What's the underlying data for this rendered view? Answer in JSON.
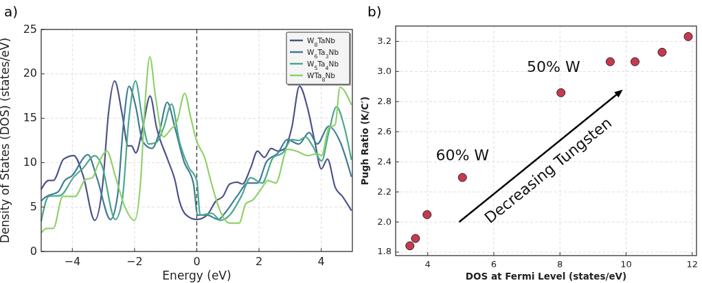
{
  "chart_data": [
    {
      "type": "line",
      "title": "a)",
      "xlabel": "Energy (eV)",
      "ylabel": "Density of States (DOS) (states/eV)",
      "xlim": [
        -5,
        5
      ],
      "ylim": [
        0,
        25
      ],
      "xticks": [
        {
          "value": -4,
          "label": "−4"
        },
        {
          "value": -2,
          "label": "−2"
        },
        0,
        2,
        4
      ],
      "yticks": [
        0,
        5,
        10,
        15,
        20,
        25
      ],
      "grid": true,
      "legend": "top right",
      "line_style": "solid",
      "marker": "none",
      "ref_lines": [
        {
          "axis": "x",
          "value": 0,
          "line_style": "dashed",
          "color": "#333333"
        }
      ],
      "series": [
        {
          "name": "W$_{8}$TaNb",
          "color": "#4e5288",
          "x": [
            -5,
            -4.76,
            -4.61,
            -4.28,
            -3.95,
            -3.65,
            -3.28,
            -3.02,
            -2.84,
            -2.64,
            -2.4,
            -2.21,
            -2.1,
            -1.96,
            -1.74,
            -1.5,
            -1.29,
            -0.93,
            -0.7,
            -0.56,
            -0.34,
            0,
            0.33,
            0.62,
            0.84,
            1.06,
            1.29,
            1.47,
            1.73,
            1.95,
            2.17,
            2.39,
            2.61,
            2.83,
            3.05,
            3.3,
            3.57,
            3.79,
            4,
            4.2,
            4.45,
            4.68,
            4.97
          ],
          "values": [
            7,
            8,
            8,
            10.4,
            10.8,
            8.5,
            3.5,
            7.7,
            15.5,
            19.2,
            15.5,
            11.9,
            11.9,
            11.1,
            13.9,
            17.5,
            13.9,
            10.3,
            8,
            5.7,
            4.1,
            3.6,
            4.1,
            5.7,
            6.2,
            7.6,
            7.8,
            7.6,
            9.4,
            11.3,
            10.6,
            11.6,
            11.3,
            11.6,
            13.9,
            18.6,
            16,
            12.4,
            9.3,
            10.4,
            7.2,
            6.2,
            4.6
          ]
        },
        {
          "name": "W$_{6}$Ta$_{3}$Nb",
          "color": "#3f7b96",
          "x": [
            -5,
            -4.83,
            -4.46,
            -4.24,
            -4.02,
            -3.5,
            -3.21,
            -2.77,
            -2.55,
            -2.36,
            -2.18,
            -1.96,
            -1.74,
            -1.44,
            -1.22,
            -0.95,
            -0.7,
            -0.41,
            -0.11,
            0.03,
            0.33,
            0.7,
            0.92,
            1.29,
            1.65,
            1.95,
            2.24,
            2.61,
            2.91,
            3.28,
            3.61,
            3.87,
            4.24,
            4.6,
            4.97
          ],
          "values": [
            5.7,
            6.2,
            6.7,
            8,
            8.5,
            10.9,
            8.3,
            3.6,
            6.2,
            14.2,
            18.6,
            16.3,
            12.4,
            11.6,
            13.2,
            16.8,
            13.9,
            10.1,
            7.7,
            4.1,
            4.1,
            3.6,
            4.4,
            6.2,
            7.7,
            7.7,
            10.1,
            11.1,
            12.6,
            12.1,
            13.4,
            12.1,
            14.1,
            12.4,
            8.4
          ]
        },
        {
          "name": "W$_{5}$Ta$_{4}$Nb",
          "color": "#4aa88c",
          "x": [
            -5,
            -4.76,
            -4.39,
            -3.95,
            -3.65,
            -3.28,
            -3.06,
            -2.62,
            -2.4,
            -2.18,
            -1.97,
            -1.74,
            -1.55,
            -1.29,
            -1.07,
            -0.81,
            -0.56,
            -0.26,
            0,
            0.11,
            0.48,
            0.77,
            1.06,
            1.43,
            1.73,
            2.1,
            2.46,
            2.76,
            3.05,
            3.28,
            3.5,
            3.72,
            4.01,
            4.24,
            4.49,
            4.75,
            4.97
          ],
          "values": [
            3.4,
            6.2,
            6.3,
            8.4,
            9.4,
            10.8,
            9.8,
            3.6,
            5.7,
            15,
            19.2,
            14.7,
            12.1,
            12.3,
            13.9,
            16.6,
            12.4,
            9.5,
            8,
            4.1,
            4.3,
            3.5,
            4.1,
            6.2,
            8.3,
            7.7,
            10.6,
            11.1,
            12.6,
            12.5,
            12.9,
            11.9,
            10.2,
            13.4,
            16.3,
            13.9,
            10.3
          ]
        },
        {
          "name": "WTa$_{8}$Nb",
          "color": "#8fd16a",
          "x": [
            -5,
            -4.83,
            -4.61,
            -4.31,
            -3.91,
            -3.58,
            -3.36,
            -3.14,
            -2.89,
            -2.62,
            -2.33,
            -2,
            -1.81,
            -1.66,
            -1.51,
            -1.33,
            -1.07,
            -0.85,
            -0.63,
            -0.39,
            -0.19,
            0,
            0.25,
            0.47,
            0.77,
            1.06,
            1.36,
            1.58,
            1.8,
            2.1,
            2.28,
            2.54,
            2.91,
            3.2,
            3.57,
            3.87,
            4.01,
            4.24,
            4.45,
            4.6,
            4.97
          ],
          "values": [
            2.1,
            2.6,
            2.6,
            6.2,
            6.2,
            8.1,
            8.3,
            10.1,
            11.3,
            8.5,
            5.2,
            3.5,
            7.7,
            16.8,
            21.9,
            17.5,
            12.9,
            13.7,
            14.7,
            17.8,
            15,
            12.4,
            10.6,
            7.7,
            4.4,
            3.2,
            3.2,
            5.4,
            5.8,
            7.2,
            8,
            7.7,
            11.5,
            11.3,
            10.8,
            11,
            10.8,
            13.9,
            14.3,
            18.5,
            16.5
          ]
        }
      ]
    },
    {
      "type": "scatter",
      "title": "b)",
      "xlabel": "DOS at Fermi Level (states/eV)",
      "ylabel": "Pugh Ratio (K/C′)",
      "xlim": [
        3.03,
        12.13
      ],
      "ylim": [
        1.777,
        3.302
      ],
      "xticks": [
        4,
        6,
        8,
        10,
        12
      ],
      "yticks": [
        {
          "value": 1.8,
          "label": "1.8"
        },
        {
          "value": 2.0,
          "label": "2.0"
        },
        {
          "value": 2.2,
          "label": "2.2"
        },
        {
          "value": 2.4,
          "label": "2.4"
        },
        {
          "value": 2.6,
          "label": "2.6"
        },
        {
          "value": 2.8,
          "label": "2.8"
        },
        {
          "value": 3.0,
          "label": "3.0"
        },
        {
          "value": 3.2,
          "label": "3.2"
        }
      ],
      "grid": true,
      "marker": "circle",
      "color": "#c8394f",
      "x": [
        3.46,
        3.63,
        3.98,
        5.05,
        8.03,
        9.52,
        10.27,
        11.09,
        11.88
      ],
      "values": [
        1.842,
        1.891,
        2.049,
        2.296,
        2.859,
        3.065,
        3.065,
        3.128,
        3.232
      ],
      "annotations": [
        "60% W",
        "50% W",
        "Decreasing Tungsten"
      ]
    }
  ]
}
